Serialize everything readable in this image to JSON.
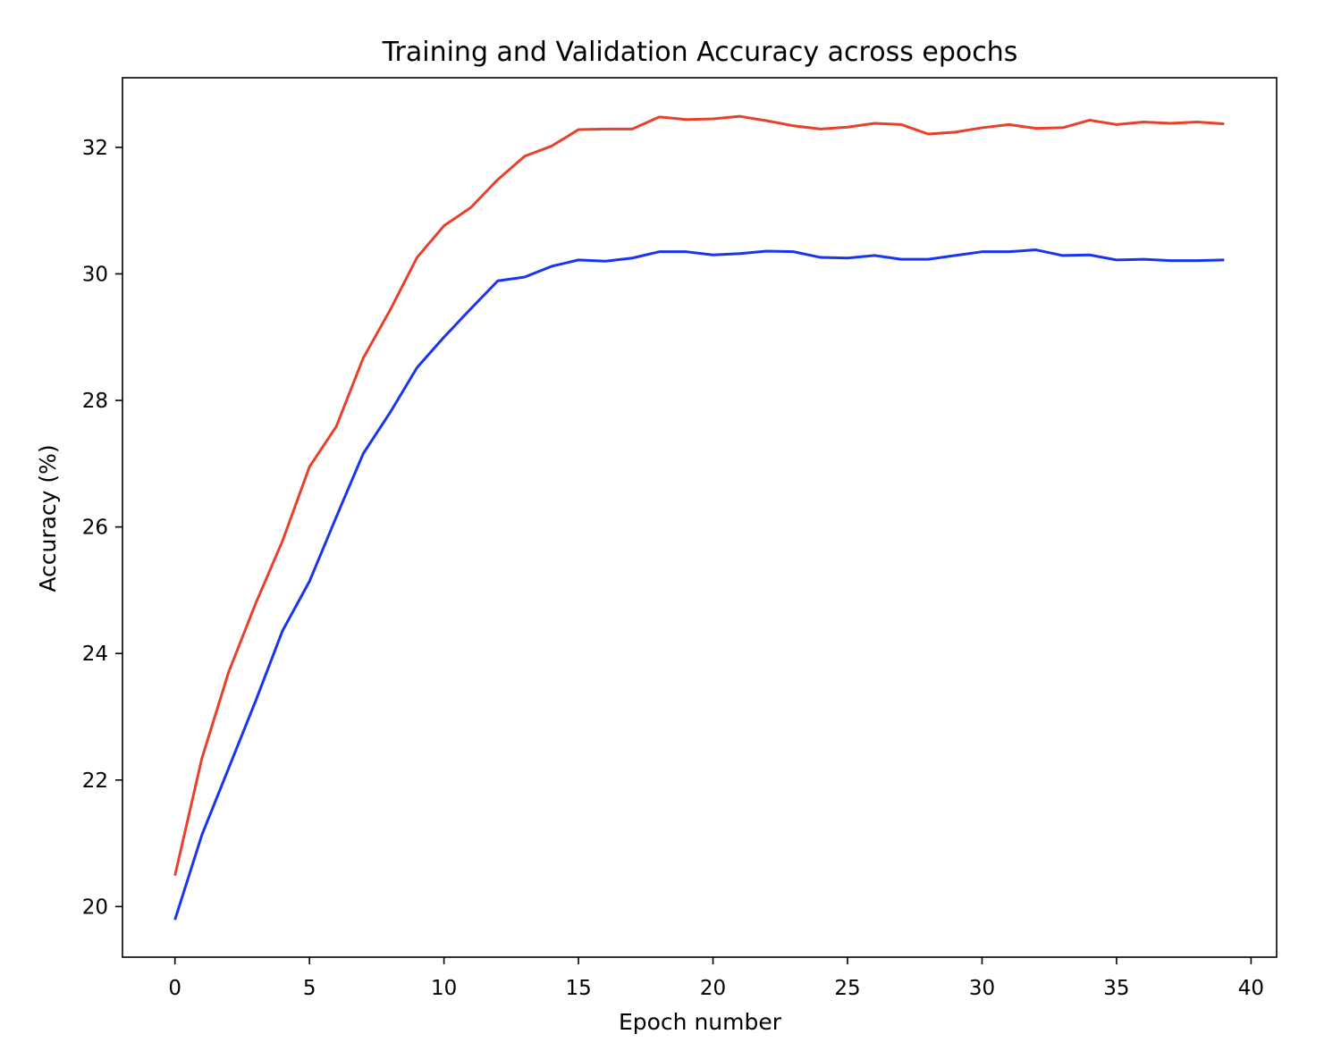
{
  "chart_data": {
    "type": "line",
    "title": "Training and Validation Accuracy across epochs",
    "xlabel": "Epoch number",
    "ylabel": "Accuracy (%)",
    "xlim": [
      -1.95,
      40.95
    ],
    "ylim": [
      19.2,
      33.1
    ],
    "xticks": [
      0,
      5,
      10,
      15,
      20,
      25,
      30,
      35,
      40
    ],
    "yticks": [
      20,
      22,
      24,
      26,
      28,
      30,
      32
    ],
    "grid": false,
    "x": [
      0,
      1,
      2,
      3,
      4,
      5,
      6,
      7,
      8,
      9,
      10,
      11,
      12,
      13,
      14,
      15,
      16,
      17,
      18,
      19,
      20,
      21,
      22,
      23,
      24,
      25,
      26,
      27,
      28,
      29,
      30,
      31,
      32,
      33,
      34,
      35,
      36,
      37,
      38,
      39
    ],
    "series": [
      {
        "color": "#e8412b",
        "values": [
          20.49,
          22.34,
          23.71,
          24.79,
          25.78,
          26.95,
          27.59,
          28.67,
          29.43,
          30.26,
          30.76,
          31.05,
          31.49,
          31.86,
          32.02,
          32.28,
          32.29,
          32.29,
          32.48,
          32.44,
          32.45,
          32.49,
          32.42,
          32.34,
          32.29,
          32.32,
          32.38,
          32.36,
          32.21,
          32.24,
          32.31,
          32.36,
          32.3,
          32.31,
          32.43,
          32.36,
          32.4,
          32.38,
          32.4,
          32.37
        ]
      },
      {
        "color": "#1a35f0",
        "values": [
          19.79,
          21.13,
          22.19,
          23.25,
          24.36,
          25.14,
          26.16,
          27.16,
          27.81,
          28.52,
          29.0,
          29.45,
          29.89,
          29.95,
          30.12,
          30.22,
          30.2,
          30.25,
          30.35,
          30.35,
          30.3,
          30.32,
          30.36,
          30.35,
          30.26,
          30.25,
          30.29,
          30.23,
          30.23,
          30.29,
          30.35,
          30.35,
          30.38,
          30.29,
          30.3,
          30.22,
          30.23,
          30.21,
          30.21,
          30.22
        ]
      }
    ]
  }
}
